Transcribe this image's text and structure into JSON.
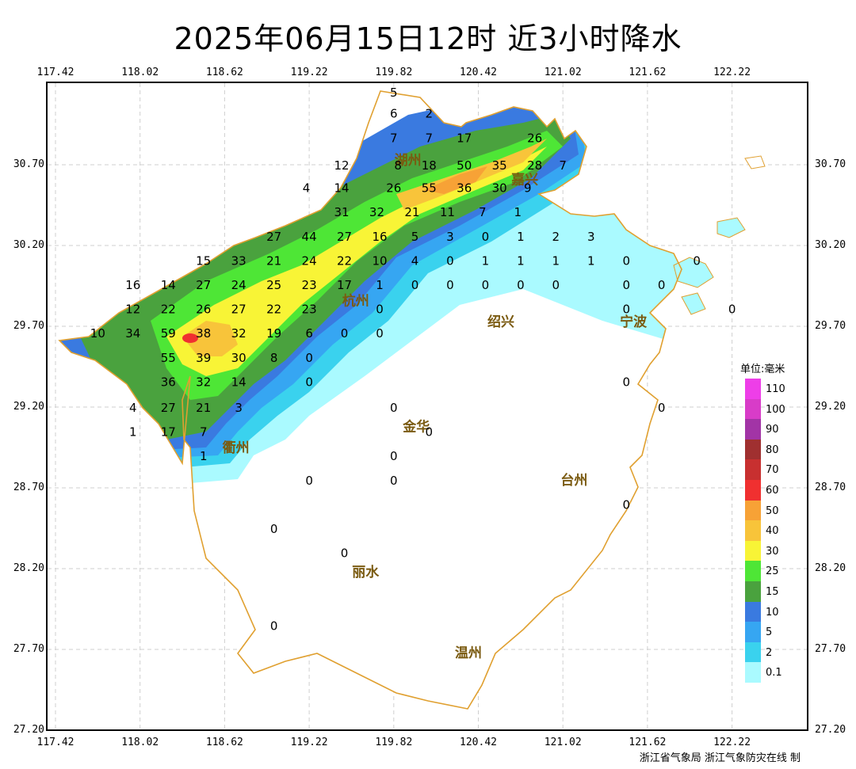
{
  "title": "2025年06月15日12时 近3小时降水",
  "credit": "浙江省气象局   浙江气象防灾在线 制",
  "lon_ticks": [
    "117.42",
    "118.02",
    "118.62",
    "119.22",
    "119.82",
    "120.42",
    "121.02",
    "121.62",
    "122.22"
  ],
  "lat_ticks": [
    "30.70",
    "30.20",
    "29.70",
    "29.20",
    "28.70",
    "28.20",
    "27.70",
    "27.20"
  ],
  "legend": {
    "unit": "单位:毫米",
    "items": [
      {
        "label": "110",
        "color": "#ee3ee8"
      },
      {
        "label": "100",
        "color": "#d83cc8"
      },
      {
        "label": "90",
        "color": "#a234a6"
      },
      {
        "label": "80",
        "color": "#a03030"
      },
      {
        "label": "70",
        "color": "#c83030"
      },
      {
        "label": "60",
        "color": "#f03030"
      },
      {
        "label": "50",
        "color": "#f7a236"
      },
      {
        "label": "40",
        "color": "#f8c43a"
      },
      {
        "label": "30",
        "color": "#f8f436"
      },
      {
        "label": "25",
        "color": "#4ee636"
      },
      {
        "label": "15",
        "color": "#4aa23e"
      },
      {
        "label": "10",
        "color": "#3a7ae0"
      },
      {
        "label": "5",
        "color": "#36a6f2"
      },
      {
        "label": "2",
        "color": "#3ad2ee"
      },
      {
        "label": "0.1",
        "color": "#aafaff"
      }
    ]
  },
  "cities": [
    {
      "name": "湖州",
      "lon": 119.92,
      "lat": 30.7
    },
    {
      "name": "嘉兴",
      "lon": 120.75,
      "lat": 30.58
    },
    {
      "name": "杭州",
      "lon": 119.55,
      "lat": 29.83
    },
    {
      "name": "绍兴",
      "lon": 120.58,
      "lat": 29.7
    },
    {
      "name": "宁波",
      "lon": 121.52,
      "lat": 29.7
    },
    {
      "name": "衢州",
      "lon": 118.7,
      "lat": 28.92
    },
    {
      "name": "金华",
      "lon": 119.98,
      "lat": 29.05
    },
    {
      "name": "台州",
      "lon": 121.1,
      "lat": 28.72
    },
    {
      "name": "丽水",
      "lon": 119.62,
      "lat": 28.15
    },
    {
      "name": "温州",
      "lon": 120.35,
      "lat": 27.65
    }
  ],
  "stations": [
    {
      "v": "5",
      "lon": 119.82,
      "lat": 31.15
    },
    {
      "v": "6",
      "lon": 119.82,
      "lat": 31.02
    },
    {
      "v": "2",
      "lon": 120.07,
      "lat": 31.02
    },
    {
      "v": "7",
      "lon": 119.82,
      "lat": 30.87
    },
    {
      "v": "7",
      "lon": 120.07,
      "lat": 30.87
    },
    {
      "v": "17",
      "lon": 120.32,
      "lat": 30.87
    },
    {
      "v": "26",
      "lon": 120.82,
      "lat": 30.87
    },
    {
      "v": "12",
      "lon": 119.45,
      "lat": 30.7
    },
    {
      "v": "8",
      "lon": 119.85,
      "lat": 30.7
    },
    {
      "v": "18",
      "lon": 120.07,
      "lat": 30.7
    },
    {
      "v": "50",
      "lon": 120.32,
      "lat": 30.7
    },
    {
      "v": "35",
      "lon": 120.57,
      "lat": 30.7
    },
    {
      "v": "28",
      "lon": 120.82,
      "lat": 30.7
    },
    {
      "v": "7",
      "lon": 121.02,
      "lat": 30.7
    },
    {
      "v": "4",
      "lon": 119.2,
      "lat": 30.56
    },
    {
      "v": "14",
      "lon": 119.45,
      "lat": 30.56
    },
    {
      "v": "26",
      "lon": 119.82,
      "lat": 30.56
    },
    {
      "v": "55",
      "lon": 120.07,
      "lat": 30.56
    },
    {
      "v": "36",
      "lon": 120.32,
      "lat": 30.56
    },
    {
      "v": "30",
      "lon": 120.57,
      "lat": 30.56
    },
    {
      "v": "9",
      "lon": 120.77,
      "lat": 30.56
    },
    {
      "v": "31",
      "lon": 119.45,
      "lat": 30.41
    },
    {
      "v": "32",
      "lon": 119.7,
      "lat": 30.41
    },
    {
      "v": "21",
      "lon": 119.95,
      "lat": 30.41
    },
    {
      "v": "11",
      "lon": 120.2,
      "lat": 30.41
    },
    {
      "v": "7",
      "lon": 120.45,
      "lat": 30.41
    },
    {
      "v": "1",
      "lon": 120.7,
      "lat": 30.41
    },
    {
      "v": "27",
      "lon": 118.97,
      "lat": 30.26
    },
    {
      "v": "44",
      "lon": 119.22,
      "lat": 30.26
    },
    {
      "v": "27",
      "lon": 119.47,
      "lat": 30.26
    },
    {
      "v": "16",
      "lon": 119.72,
      "lat": 30.26
    },
    {
      "v": "5",
      "lon": 119.97,
      "lat": 30.26
    },
    {
      "v": "3",
      "lon": 120.22,
      "lat": 30.26
    },
    {
      "v": "0",
      "lon": 120.47,
      "lat": 30.26
    },
    {
      "v": "1",
      "lon": 120.72,
      "lat": 30.26
    },
    {
      "v": "2",
      "lon": 120.97,
      "lat": 30.26
    },
    {
      "v": "3",
      "lon": 121.22,
      "lat": 30.26
    },
    {
      "v": "15",
      "lon": 118.47,
      "lat": 30.11
    },
    {
      "v": "33",
      "lon": 118.72,
      "lat": 30.11
    },
    {
      "v": "21",
      "lon": 118.97,
      "lat": 30.11
    },
    {
      "v": "24",
      "lon": 119.22,
      "lat": 30.11
    },
    {
      "v": "22",
      "lon": 119.47,
      "lat": 30.11
    },
    {
      "v": "10",
      "lon": 119.72,
      "lat": 30.11
    },
    {
      "v": "4",
      "lon": 119.97,
      "lat": 30.11
    },
    {
      "v": "0",
      "lon": 120.22,
      "lat": 30.11
    },
    {
      "v": "1",
      "lon": 120.47,
      "lat": 30.11
    },
    {
      "v": "1",
      "lon": 120.72,
      "lat": 30.11
    },
    {
      "v": "1",
      "lon": 120.97,
      "lat": 30.11
    },
    {
      "v": "1",
      "lon": 121.22,
      "lat": 30.11
    },
    {
      "v": "0",
      "lon": 121.47,
      "lat": 30.11
    },
    {
      "v": "0",
      "lon": 121.97,
      "lat": 30.11
    },
    {
      "v": "16",
      "lon": 117.97,
      "lat": 29.96
    },
    {
      "v": "14",
      "lon": 118.22,
      "lat": 29.96
    },
    {
      "v": "27",
      "lon": 118.47,
      "lat": 29.96
    },
    {
      "v": "24",
      "lon": 118.72,
      "lat": 29.96
    },
    {
      "v": "25",
      "lon": 118.97,
      "lat": 29.96
    },
    {
      "v": "23",
      "lon": 119.22,
      "lat": 29.96
    },
    {
      "v": "17",
      "lon": 119.47,
      "lat": 29.96
    },
    {
      "v": "1",
      "lon": 119.72,
      "lat": 29.96
    },
    {
      "v": "0",
      "lon": 119.97,
      "lat": 29.96
    },
    {
      "v": "0",
      "lon": 120.22,
      "lat": 29.96
    },
    {
      "v": "0",
      "lon": 120.47,
      "lat": 29.96
    },
    {
      "v": "0",
      "lon": 120.72,
      "lat": 29.96
    },
    {
      "v": "0",
      "lon": 120.97,
      "lat": 29.96
    },
    {
      "v": "0",
      "lon": 121.47,
      "lat": 29.96
    },
    {
      "v": "0",
      "lon": 121.72,
      "lat": 29.96
    },
    {
      "v": "12",
      "lon": 117.97,
      "lat": 29.81
    },
    {
      "v": "22",
      "lon": 118.22,
      "lat": 29.81
    },
    {
      "v": "26",
      "lon": 118.47,
      "lat": 29.81
    },
    {
      "v": "27",
      "lon": 118.72,
      "lat": 29.81
    },
    {
      "v": "22",
      "lon": 118.97,
      "lat": 29.81
    },
    {
      "v": "23",
      "lon": 119.22,
      "lat": 29.81
    },
    {
      "v": "0",
      "lon": 119.72,
      "lat": 29.81
    },
    {
      "v": "0",
      "lon": 121.47,
      "lat": 29.81
    },
    {
      "v": "0",
      "lon": 122.22,
      "lat": 29.81
    },
    {
      "v": "10",
      "lon": 117.72,
      "lat": 29.66
    },
    {
      "v": "34",
      "lon": 117.97,
      "lat": 29.66
    },
    {
      "v": "59",
      "lon": 118.22,
      "lat": 29.66
    },
    {
      "v": "38",
      "lon": 118.47,
      "lat": 29.66
    },
    {
      "v": "32",
      "lon": 118.72,
      "lat": 29.66
    },
    {
      "v": "19",
      "lon": 118.97,
      "lat": 29.66
    },
    {
      "v": "6",
      "lon": 119.22,
      "lat": 29.66
    },
    {
      "v": "0",
      "lon": 119.47,
      "lat": 29.66
    },
    {
      "v": "0",
      "lon": 119.72,
      "lat": 29.66
    },
    {
      "v": "55",
      "lon": 118.22,
      "lat": 29.51
    },
    {
      "v": "39",
      "lon": 118.47,
      "lat": 29.51
    },
    {
      "v": "30",
      "lon": 118.72,
      "lat": 29.51
    },
    {
      "v": "8",
      "lon": 118.97,
      "lat": 29.51
    },
    {
      "v": "0",
      "lon": 119.22,
      "lat": 29.51
    },
    {
      "v": "36",
      "lon": 118.22,
      "lat": 29.36
    },
    {
      "v": "32",
      "lon": 118.47,
      "lat": 29.36
    },
    {
      "v": "14",
      "lon": 118.72,
      "lat": 29.36
    },
    {
      "v": "0",
      "lon": 119.22,
      "lat": 29.36
    },
    {
      "v": "0",
      "lon": 121.47,
      "lat": 29.36
    },
    {
      "v": "4",
      "lon": 117.97,
      "lat": 29.2
    },
    {
      "v": "27",
      "lon": 118.22,
      "lat": 29.2
    },
    {
      "v": "21",
      "lon": 118.47,
      "lat": 29.2
    },
    {
      "v": "3",
      "lon": 118.72,
      "lat": 29.2
    },
    {
      "v": "0",
      "lon": 119.82,
      "lat": 29.2
    },
    {
      "v": "0",
      "lon": 121.72,
      "lat": 29.2
    },
    {
      "v": "1",
      "lon": 117.97,
      "lat": 29.05
    },
    {
      "v": "17",
      "lon": 118.22,
      "lat": 29.05
    },
    {
      "v": "7",
      "lon": 118.47,
      "lat": 29.05
    },
    {
      "v": "0",
      "lon": 120.07,
      "lat": 29.05
    },
    {
      "v": "1",
      "lon": 118.47,
      "lat": 28.9
    },
    {
      "v": "0",
      "lon": 119.82,
      "lat": 28.9
    },
    {
      "v": "0",
      "lon": 119.22,
      "lat": 28.75
    },
    {
      "v": "0",
      "lon": 119.82,
      "lat": 28.75
    },
    {
      "v": "0",
      "lon": 121.47,
      "lat": 28.6
    },
    {
      "v": "0",
      "lon": 118.97,
      "lat": 28.45
    },
    {
      "v": "0",
      "lon": 119.47,
      "lat": 28.3
    },
    {
      "v": "0",
      "lon": 118.97,
      "lat": 27.85
    }
  ]
}
